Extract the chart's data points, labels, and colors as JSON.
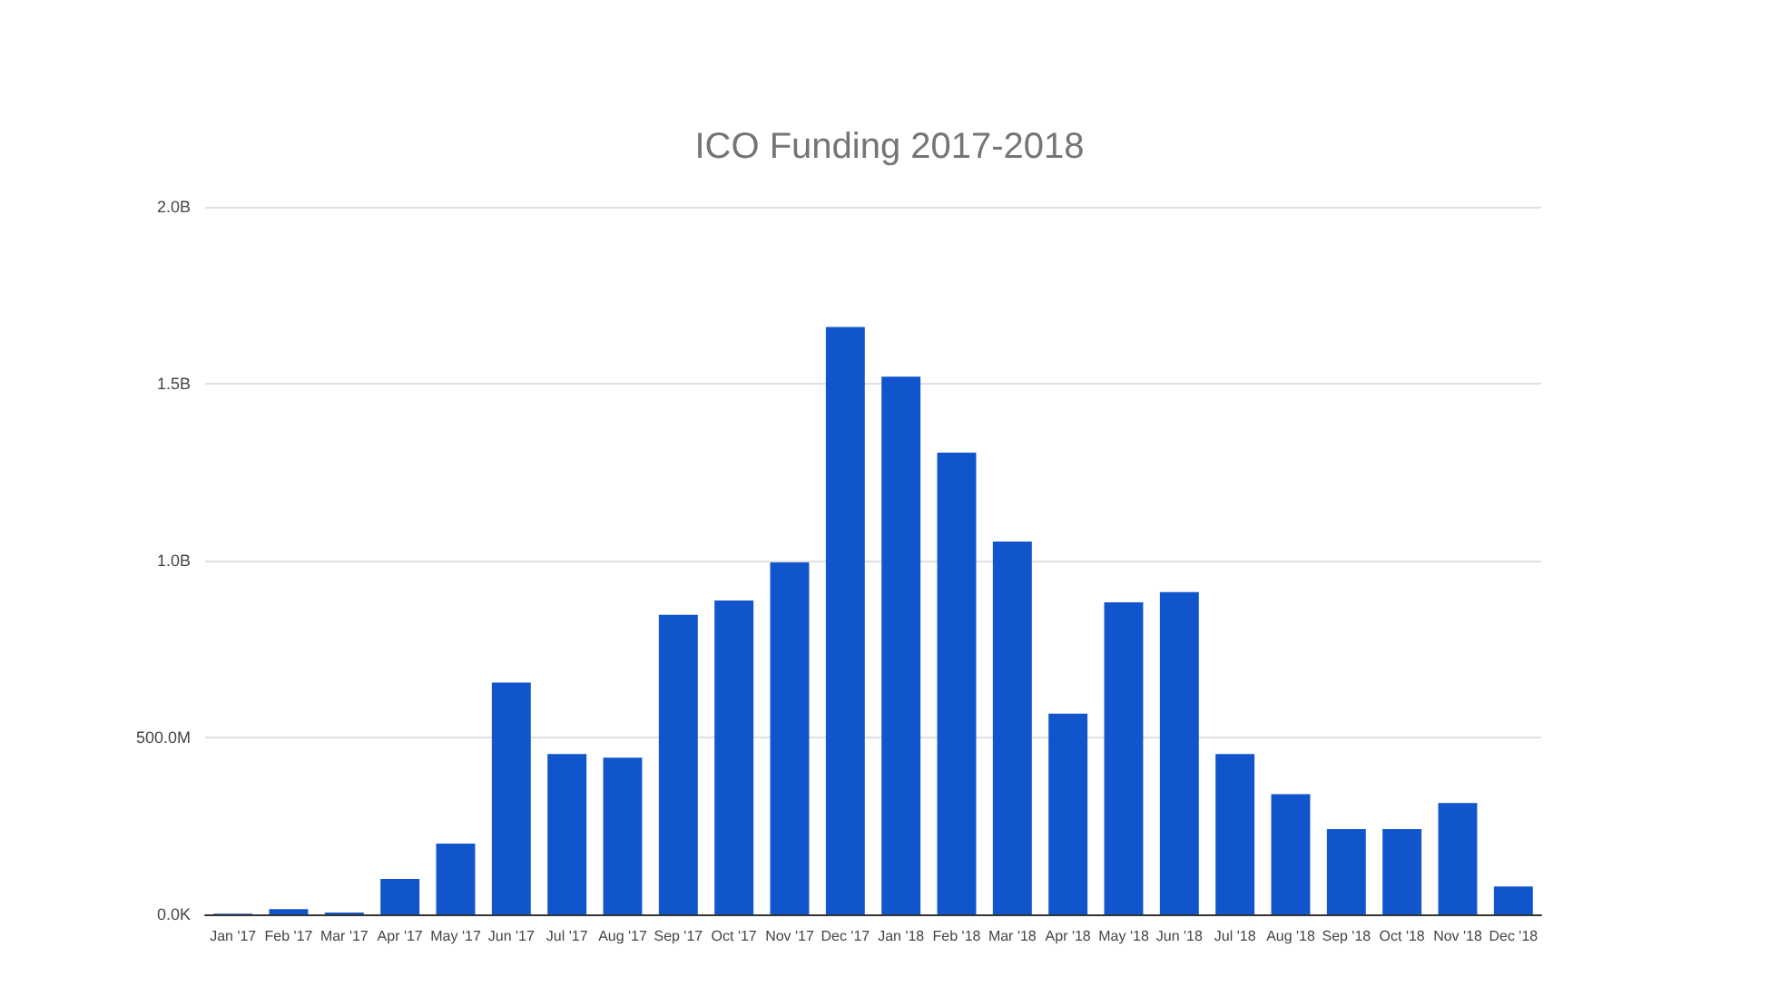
{
  "chart_data": {
    "type": "bar",
    "title": "ICO Funding 2017-2018",
    "categories": [
      "Jan '17",
      "Feb '17",
      "Mar '17",
      "Apr '17",
      "May '17",
      "Jun '17",
      "Jul '17",
      "Aug '17",
      "Sep '17",
      "Oct '17",
      "Nov '17",
      "Dec '17",
      "Jan '18",
      "Feb '18",
      "Mar '18",
      "Apr '18",
      "May '18",
      "Jun '18",
      "Jul '18",
      "Aug '18",
      "Sep '18",
      "Oct '18",
      "Nov '18",
      "Dec '18"
    ],
    "values": [
      2000000,
      15000000,
      5000000,
      100000000,
      200000000,
      655000000,
      453000000,
      443000000,
      847000000,
      887000000,
      995000000,
      1660000000,
      1520000000,
      1305000000,
      1054000000,
      567000000,
      882000000,
      911000000,
      453000000,
      340000000,
      241000000,
      241000000,
      315000000,
      79000000
    ],
    "color": "#1155cc",
    "ylim": [
      0,
      2000000000
    ],
    "yticks": [
      {
        "value": 0,
        "label": "0.0K"
      },
      {
        "value": 500000000,
        "label": "500.0M"
      },
      {
        "value": 1000000000,
        "label": "1.0B"
      },
      {
        "value": 1500000000,
        "label": "1.5B"
      },
      {
        "value": 2000000000,
        "label": "2.0B"
      }
    ],
    "grid": "y"
  }
}
